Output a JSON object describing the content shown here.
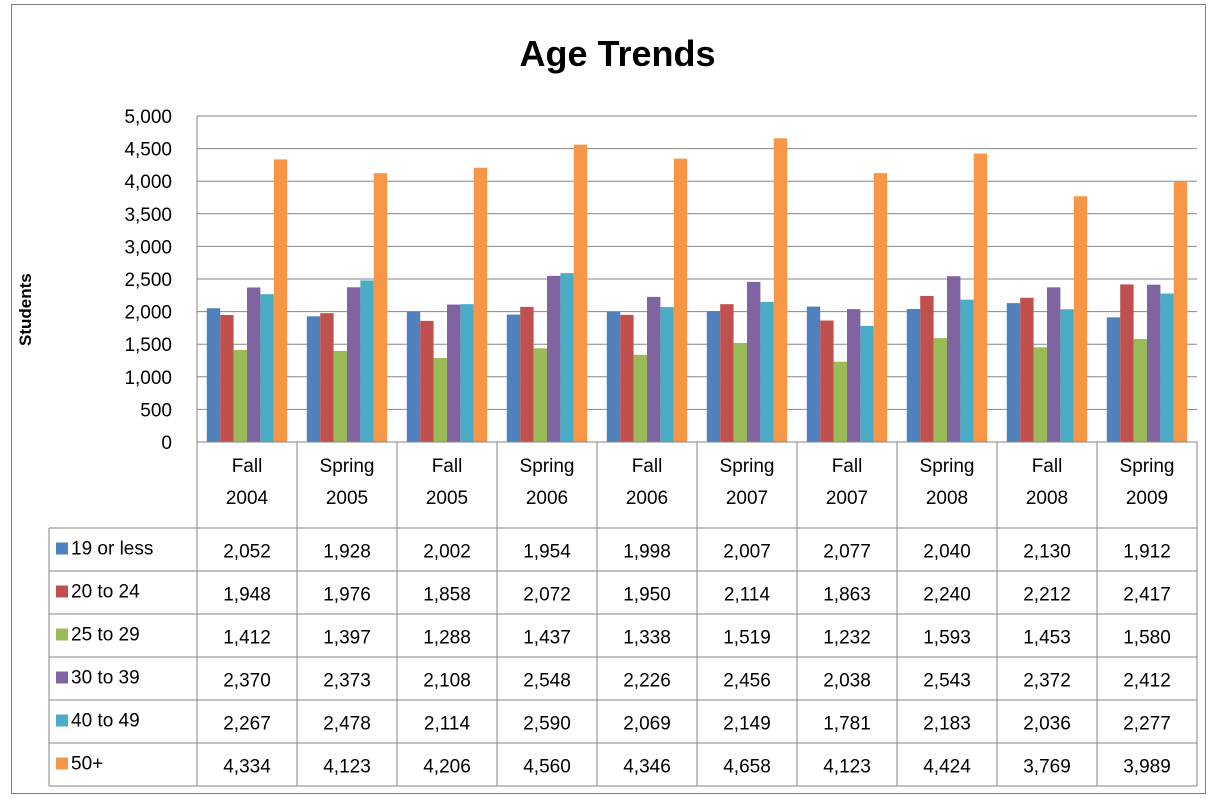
{
  "chart_data": {
    "type": "bar",
    "title": "Age Trends",
    "ylabel": "Students",
    "xlabel": "",
    "ylim": [
      0,
      5000
    ],
    "ytick_step": 500,
    "ytick_labels": [
      "0",
      "500",
      "1,000",
      "1,500",
      "2,000",
      "2,500",
      "3,000",
      "3,500",
      "4,000",
      "4,500",
      "5,000"
    ],
    "grid": true,
    "legend": "data-table",
    "categories": [
      [
        "Fall",
        "2004"
      ],
      [
        "Spring",
        "2005"
      ],
      [
        "Fall",
        "2005"
      ],
      [
        "Spring",
        "2006"
      ],
      [
        "Fall",
        "2006"
      ],
      [
        "Spring",
        "2007"
      ],
      [
        "Fall",
        "2007"
      ],
      [
        "Spring",
        "2008"
      ],
      [
        "Fall",
        "2008"
      ],
      [
        "Spring",
        "2009"
      ]
    ],
    "series": [
      {
        "name": "19 or less",
        "color": "#4f81bd",
        "values": [
          2052,
          1928,
          2002,
          1954,
          1998,
          2007,
          2077,
          2040,
          2130,
          1912
        ],
        "labels": [
          "2,052",
          "1,928",
          "2,002",
          "1,954",
          "1,998",
          "2,007",
          "2,077",
          "2,040",
          "2,130",
          "1,912"
        ]
      },
      {
        "name": "20 to 24",
        "color": "#c0504d",
        "values": [
          1948,
          1976,
          1858,
          2072,
          1950,
          2114,
          1863,
          2240,
          2212,
          2417
        ],
        "labels": [
          "1,948",
          "1,976",
          "1,858",
          "2,072",
          "1,950",
          "2,114",
          "1,863",
          "2,240",
          "2,212",
          "2,417"
        ]
      },
      {
        "name": "25 to 29",
        "color": "#9bbb59",
        "values": [
          1412,
          1397,
          1288,
          1437,
          1338,
          1519,
          1232,
          1593,
          1453,
          1580
        ],
        "labels": [
          "1,412",
          "1,397",
          "1,288",
          "1,437",
          "1,338",
          "1,519",
          "1,232",
          "1,593",
          "1,453",
          "1,580"
        ]
      },
      {
        "name": "30 to 39",
        "color": "#8064a2",
        "values": [
          2370,
          2373,
          2108,
          2548,
          2226,
          2456,
          2038,
          2543,
          2372,
          2412
        ],
        "labels": [
          "2,370",
          "2,373",
          "2,108",
          "2,548",
          "2,226",
          "2,456",
          "2,038",
          "2,543",
          "2,372",
          "2,412"
        ]
      },
      {
        "name": "40 to 49",
        "color": "#4bacc6",
        "values": [
          2267,
          2478,
          2114,
          2590,
          2069,
          2149,
          1781,
          2183,
          2036,
          2277
        ],
        "labels": [
          "2,267",
          "2,478",
          "2,114",
          "2,590",
          "2,069",
          "2,149",
          "1,781",
          "2,183",
          "2,036",
          "2,277"
        ]
      },
      {
        "name": "50+",
        "color": "#f79646",
        "values": [
          4334,
          4123,
          4206,
          4560,
          4346,
          4658,
          4123,
          4424,
          3769,
          3989
        ],
        "labels": [
          "4,334",
          "4,123",
          "4,206",
          "4,560",
          "4,346",
          "4,658",
          "4,123",
          "4,424",
          "3,769",
          "3,989"
        ]
      }
    ]
  }
}
